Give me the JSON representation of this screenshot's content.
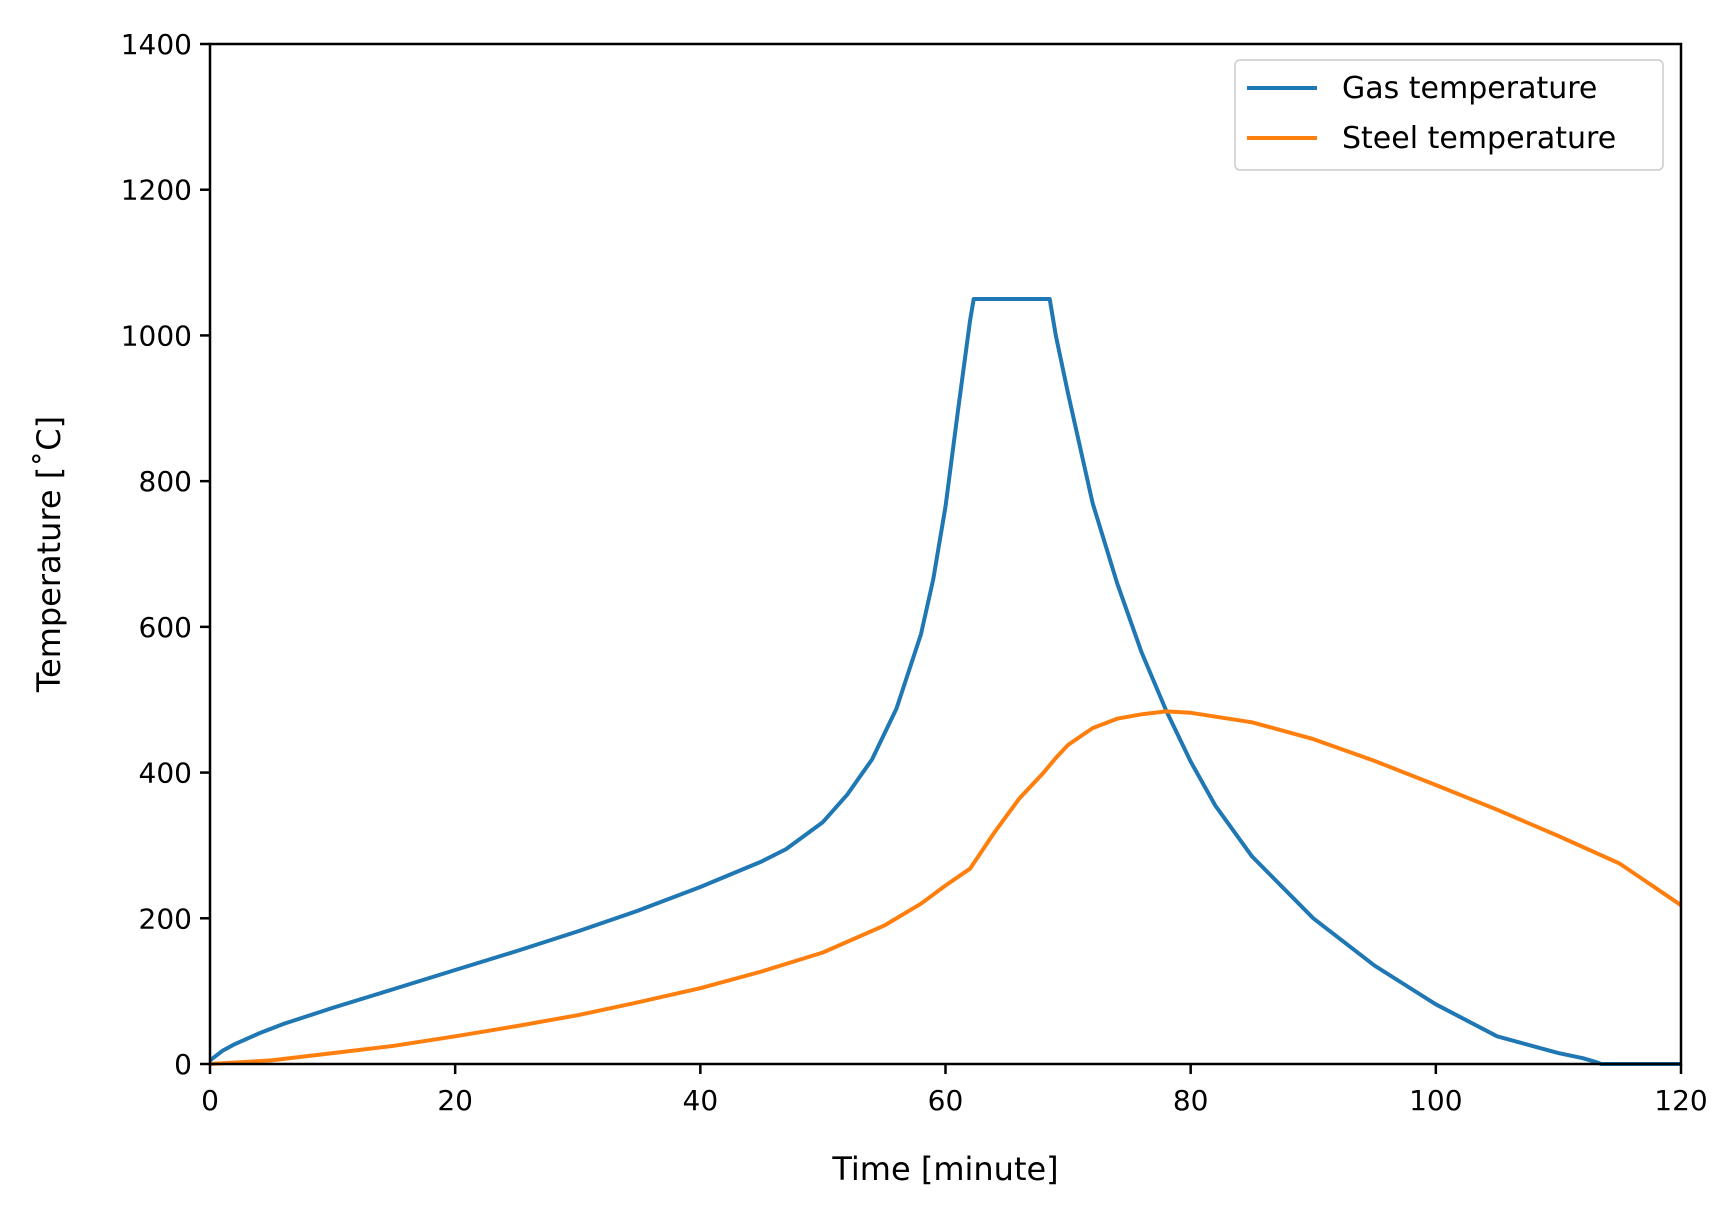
{
  "chart_data": {
    "type": "line",
    "xlabel": "Time [minute]",
    "ylabel": "Temperature [˚C]",
    "xlim": [
      0,
      120
    ],
    "ylim": [
      0,
      1400
    ],
    "xticks": [
      "0",
      "20",
      "40",
      "60",
      "80",
      "100",
      "120"
    ],
    "yticks": [
      "0",
      "200",
      "400",
      "600",
      "800",
      "1000",
      "1200",
      "1400"
    ],
    "grid": false,
    "legend_position": "top-right",
    "series": [
      {
        "name": "Gas temperature",
        "color": "#1f77b4",
        "x": [
          0,
          1,
          2,
          4,
          6,
          8,
          10,
          15,
          20,
          25,
          30,
          35,
          40,
          45,
          47,
          50,
          52,
          54,
          56,
          58,
          59,
          60,
          61,
          62,
          62.3,
          68.5,
          69,
          70,
          72,
          74,
          76,
          78,
          80,
          82,
          85,
          90,
          95,
          100,
          105,
          110,
          112,
          113,
          113.5,
          120
        ],
        "y": [
          5,
          18,
          27,
          42,
          55,
          66,
          77,
          103,
          129,
          155,
          182,
          211,
          243,
          278,
          295,
          332,
          370,
          418,
          488,
          590,
          665,
          765,
          895,
          1020,
          1050,
          1050,
          1000,
          920,
          770,
          660,
          565,
          485,
          415,
          355,
          285,
          200,
          135,
          82,
          38,
          15,
          8,
          3,
          0,
          0
        ]
      },
      {
        "name": "Steel temperature",
        "color": "#ff7f0e",
        "x": [
          0,
          5,
          10,
          15,
          20,
          25,
          30,
          35,
          40,
          45,
          50,
          55,
          58,
          60,
          62,
          64,
          66,
          68,
          69,
          70,
          72,
          74,
          76,
          78,
          80,
          85,
          90,
          95,
          100,
          105,
          110,
          115,
          120
        ],
        "y": [
          0,
          5,
          15,
          25,
          38,
          52,
          67,
          85,
          104,
          127,
          153,
          190,
          220,
          245,
          268,
          318,
          364,
          400,
          420,
          438,
          461,
          474,
          480,
          484,
          482,
          469,
          446,
          416,
          383,
          349,
          313,
          275,
          218
        ]
      }
    ]
  }
}
